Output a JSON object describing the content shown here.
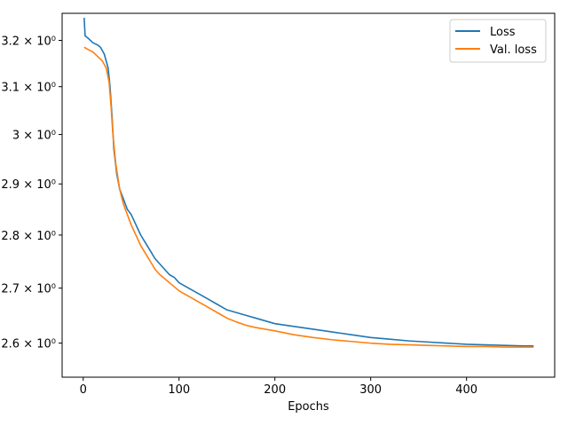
{
  "chart_data": {
    "type": "line",
    "title": "",
    "xlabel": "Epochs",
    "ylabel": "",
    "xlim": [
      -22,
      492
    ],
    "ylim": [
      2.54,
      3.26
    ],
    "yscale": "log",
    "grid": false,
    "legend_position": "top-right",
    "x_ticks": [
      0,
      100,
      200,
      300,
      400
    ],
    "y_ticks": [
      {
        "value": 2.6,
        "label": "2.6 × 10⁰"
      },
      {
        "value": 2.7,
        "label": "2.7 × 10⁰"
      },
      {
        "value": 2.8,
        "label": "2.8 × 10⁰"
      },
      {
        "value": 2.9,
        "label": "2.9 × 10⁰"
      },
      {
        "value": 3.0,
        "label": "3 × 10⁰"
      },
      {
        "value": 3.1,
        "label": "3.1 × 10⁰"
      },
      {
        "value": 3.2,
        "label": "3.2 × 10⁰"
      }
    ],
    "series": [
      {
        "name": "Loss",
        "color": "#1f77b4",
        "points": [
          [
            1,
            3.25
          ],
          [
            2,
            3.21
          ],
          [
            5,
            3.205
          ],
          [
            10,
            3.195
          ],
          [
            15,
            3.19
          ],
          [
            18,
            3.185
          ],
          [
            22,
            3.17
          ],
          [
            26,
            3.14
          ],
          [
            28,
            3.1
          ],
          [
            30,
            3.04
          ],
          [
            32,
            2.97
          ],
          [
            35,
            2.92
          ],
          [
            38,
            2.89
          ],
          [
            42,
            2.87
          ],
          [
            46,
            2.85
          ],
          [
            50,
            2.84
          ],
          [
            55,
            2.82
          ],
          [
            60,
            2.8
          ],
          [
            65,
            2.785
          ],
          [
            70,
            2.77
          ],
          [
            75,
            2.755
          ],
          [
            80,
            2.745
          ],
          [
            85,
            2.735
          ],
          [
            90,
            2.725
          ],
          [
            95,
            2.72
          ],
          [
            100,
            2.71
          ],
          [
            110,
            2.7
          ],
          [
            120,
            2.69
          ],
          [
            130,
            2.68
          ],
          [
            140,
            2.67
          ],
          [
            150,
            2.66
          ],
          [
            160,
            2.655
          ],
          [
            170,
            2.65
          ],
          [
            180,
            2.645
          ],
          [
            190,
            2.64
          ],
          [
            200,
            2.635
          ],
          [
            220,
            2.63
          ],
          [
            240,
            2.625
          ],
          [
            260,
            2.62
          ],
          [
            280,
            2.615
          ],
          [
            300,
            2.61
          ],
          [
            320,
            2.607
          ],
          [
            340,
            2.604
          ],
          [
            360,
            2.602
          ],
          [
            380,
            2.6
          ],
          [
            400,
            2.598
          ],
          [
            420,
            2.597
          ],
          [
            440,
            2.596
          ],
          [
            460,
            2.595
          ],
          [
            470,
            2.595
          ]
        ]
      },
      {
        "name": "Val. loss",
        "color": "#ff7f0e",
        "points": [
          [
            1,
            3.185
          ],
          [
            5,
            3.18
          ],
          [
            10,
            3.175
          ],
          [
            15,
            3.165
          ],
          [
            20,
            3.155
          ],
          [
            24,
            3.14
          ],
          [
            27,
            3.11
          ],
          [
            29,
            3.06
          ],
          [
            31,
            3.0
          ],
          [
            34,
            2.94
          ],
          [
            38,
            2.89
          ],
          [
            42,
            2.86
          ],
          [
            46,
            2.84
          ],
          [
            50,
            2.82
          ],
          [
            55,
            2.8
          ],
          [
            60,
            2.78
          ],
          [
            65,
            2.765
          ],
          [
            70,
            2.75
          ],
          [
            75,
            2.735
          ],
          [
            80,
            2.725
          ],
          [
            90,
            2.71
          ],
          [
            100,
            2.695
          ],
          [
            110,
            2.685
          ],
          [
            120,
            2.675
          ],
          [
            130,
            2.665
          ],
          [
            140,
            2.655
          ],
          [
            150,
            2.645
          ],
          [
            160,
            2.638
          ],
          [
            170,
            2.632
          ],
          [
            180,
            2.628
          ],
          [
            200,
            2.622
          ],
          [
            220,
            2.615
          ],
          [
            240,
            2.61
          ],
          [
            260,
            2.606
          ],
          [
            280,
            2.603
          ],
          [
            300,
            2.6
          ],
          [
            320,
            2.598
          ],
          [
            340,
            2.597
          ],
          [
            360,
            2.596
          ],
          [
            380,
            2.595
          ],
          [
            400,
            2.594
          ],
          [
            420,
            2.594
          ],
          [
            440,
            2.593
          ],
          [
            460,
            2.593
          ],
          [
            470,
            2.593
          ]
        ]
      }
    ]
  }
}
